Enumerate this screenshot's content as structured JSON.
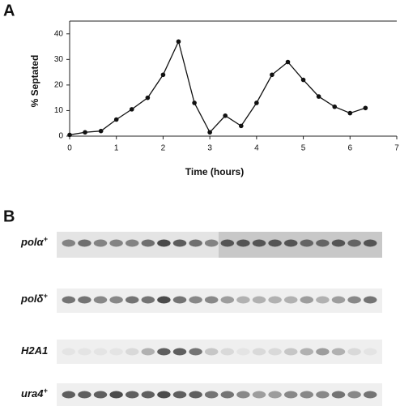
{
  "panel_labels": [
    "A",
    "B"
  ],
  "chart_data": {
    "type": "line",
    "x_label": "Time (hours)",
    "y_label": "% Septated",
    "x": [
      0,
      0.33,
      0.67,
      1,
      1.33,
      1.67,
      2,
      2.33,
      2.67,
      3,
      3.33,
      3.67,
      4,
      4.33,
      4.67,
      5,
      5.33,
      5.67,
      6,
      6.33
    ],
    "series": [
      {
        "name": "septated",
        "color": "#111111",
        "values": [
          0.5,
          1.5,
          2,
          6.5,
          10.5,
          15,
          24,
          37,
          13,
          1.5,
          8,
          4,
          13,
          24,
          29,
          22,
          15.5,
          11.5,
          9,
          11
        ]
      }
    ],
    "xlim": [
      0,
      7
    ],
    "xticks": [
      0,
      1,
      2,
      3,
      4,
      5,
      6,
      7
    ],
    "ylim": [
      0,
      45
    ],
    "yticks": [
      0,
      10,
      20,
      30,
      40
    ]
  },
  "blot": {
    "rows": [
      {
        "gene": "polα",
        "superscript": "+"
      },
      {
        "gene": "polδ",
        "superscript": "+"
      },
      {
        "gene": "H2A1"
      },
      {
        "gene": "ura4",
        "superscript": "+"
      }
    ]
  }
}
